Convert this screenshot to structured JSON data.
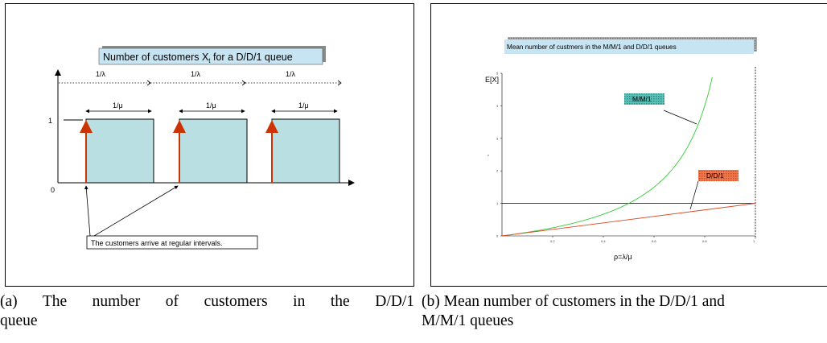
{
  "panel_a": {
    "title": "Number of customers X",
    "title_sub": "t",
    "title_rest": " for a D/D/1 queue",
    "y_tick_1": "1",
    "y_tick_0": "0",
    "inter_arrival_label": "1/λ",
    "service_label": "1/μ",
    "note": "The customers arrive at regular intervals."
  },
  "panel_b": {
    "title": "Mean number of custmers in the M/M/1 and D/D/1 queues",
    "ylabel": "E[X]",
    "xlabel": "ρ=λ/μ",
    "mm1_label": "M/M/1",
    "dd1_label": "D/D/1",
    "y_ticks": [
      "0",
      "1",
      "2",
      "3",
      "4",
      "5"
    ],
    "x_ticks": [
      "0.2",
      "0.4",
      "0.6",
      "0.8",
      "1"
    ],
    "y_mid_label": "x"
  },
  "chart_data": [
    {
      "type": "line",
      "title": "Mean number of custmers in the M/M/1 and D/D/1 queues",
      "xlabel": "ρ=λ/μ",
      "ylabel": "E[X]",
      "xlim": [
        0,
        1
      ],
      "ylim": [
        0,
        5
      ],
      "series": [
        {
          "name": "M/M/1",
          "x": [
            0,
            0.1,
            0.2,
            0.3,
            0.4,
            0.5,
            0.6,
            0.7,
            0.75,
            0.8,
            0.83
          ],
          "y": [
            0,
            0.111,
            0.25,
            0.429,
            0.667,
            1.0,
            1.5,
            2.333,
            3.0,
            4.0,
            4.88
          ]
        },
        {
          "name": "D/D/1",
          "x": [
            0,
            1
          ],
          "y": [
            0,
            1
          ]
        }
      ],
      "reference_lines": {
        "horizontal_y": 1,
        "vertical_x": 1
      },
      "colors": {
        "M/M/1": "#33cc33",
        "D/D/1": "#dd4422"
      }
    }
  ],
  "captions": {
    "a_line1": "(a) The number of customers in the D/D/1",
    "a_line2": "queue",
    "b_line1": "(b) Mean number of customers in the D/D/1 and",
    "b_line2": "M/M/1 queues"
  }
}
